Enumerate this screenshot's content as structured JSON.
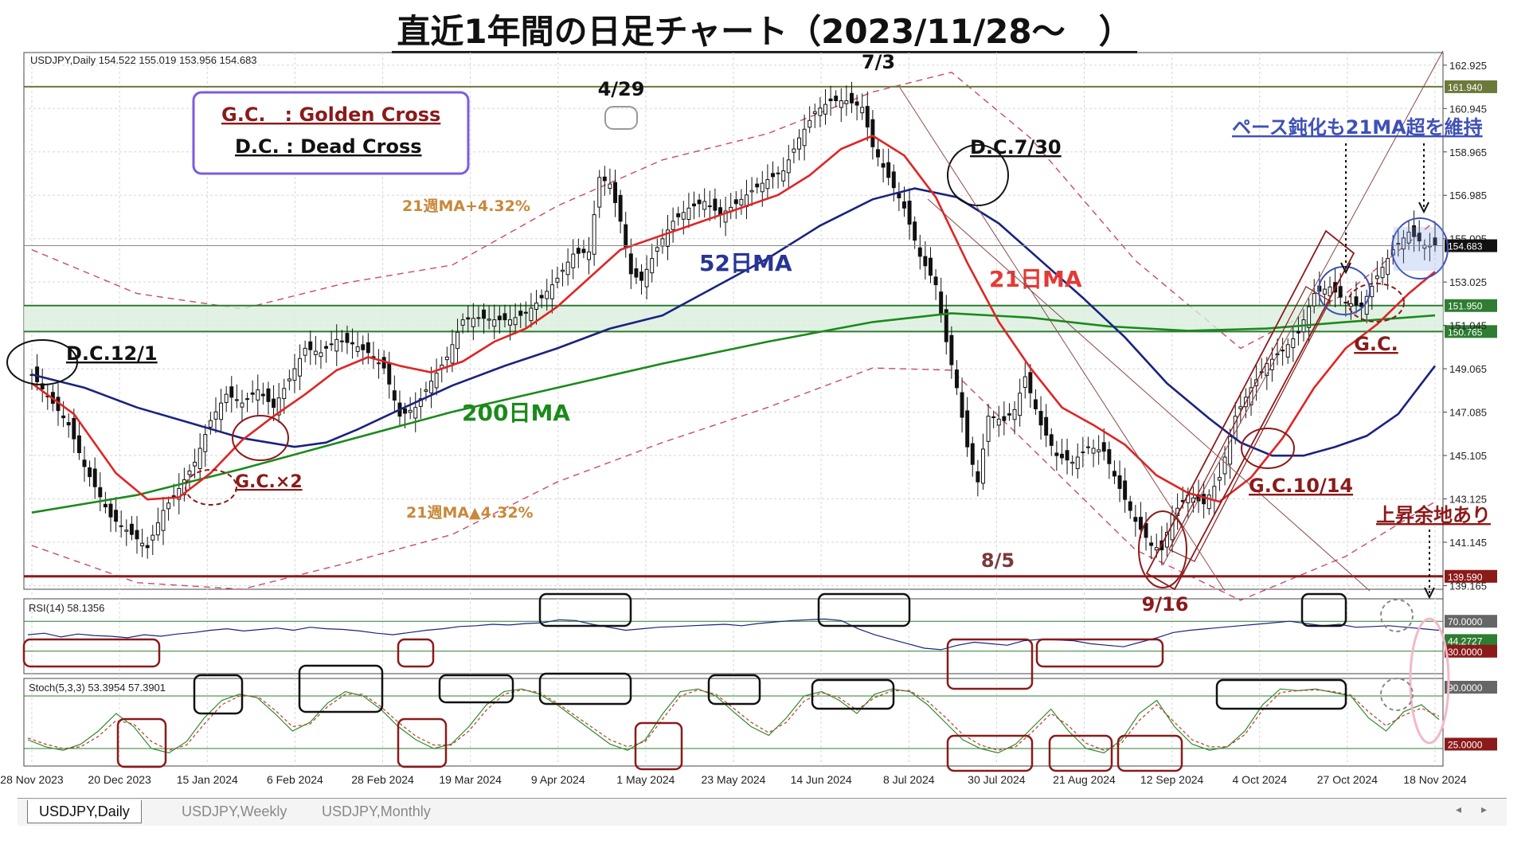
{
  "title": "直近1年間の日足チャート（2023/11/28～　）",
  "chart_data": {
    "type": "candlestick",
    "symbol_header": "USDJPY,Daily  154.522 155.019 153.956 154.683",
    "ohlc_last": {
      "open": 154.522,
      "high": 155.019,
      "low": 153.956,
      "close": 154.683
    },
    "price_ticks": [
      "162.925",
      "160.945",
      "158.965",
      "156.985",
      "155.005",
      "153.025",
      "151.045",
      "149.065",
      "147.085",
      "145.105",
      "143.125",
      "141.145",
      "139.165"
    ],
    "price_ylim": [
      139.0,
      163.5
    ],
    "date_labels": [
      "28 Nov 2023",
      "20 Dec 2023",
      "15 Jan 2024",
      "6 Feb 2024",
      "28 Feb 2024",
      "19 Mar 2024",
      "9 Apr 2024",
      "1 May 2024",
      "23 May 2024",
      "14 Jun 2024",
      "8 Jul 2024",
      "30 Jul 2024",
      "21 Aug 2024",
      "12 Sep 2024",
      "4 Oct 2024",
      "27 Oct 2024",
      "18 Nov 2024"
    ],
    "close_path": [
      {
        "x": 0,
        "y": 148.8
      },
      {
        "x": 7,
        "y": 146.5
      },
      {
        "x": 10,
        "y": 144.6
      },
      {
        "x": 15,
        "y": 142.3
      },
      {
        "x": 19,
        "y": 141.5
      },
      {
        "x": 22,
        "y": 140.9
      },
      {
        "x": 25,
        "y": 142.6
      },
      {
        "x": 28,
        "y": 143.6
      },
      {
        "x": 31,
        "y": 144.8
      },
      {
        "x": 34,
        "y": 146.7
      },
      {
        "x": 37,
        "y": 147.9
      },
      {
        "x": 40,
        "y": 147.5
      },
      {
        "x": 43,
        "y": 148.1
      },
      {
        "x": 46,
        "y": 147.3
      },
      {
        "x": 49,
        "y": 148.6
      },
      {
        "x": 52,
        "y": 150.0
      },
      {
        "x": 55,
        "y": 149.8
      },
      {
        "x": 58,
        "y": 150.4
      },
      {
        "x": 61,
        "y": 150.2
      },
      {
        "x": 64,
        "y": 149.8
      },
      {
        "x": 67,
        "y": 149.1
      },
      {
        "x": 70,
        "y": 146.9
      },
      {
        "x": 73,
        "y": 147.3
      },
      {
        "x": 76,
        "y": 148.5
      },
      {
        "x": 79,
        "y": 149.6
      },
      {
        "x": 82,
        "y": 151.3
      },
      {
        "x": 85,
        "y": 151.4
      },
      {
        "x": 88,
        "y": 151.3
      },
      {
        "x": 91,
        "y": 151.3
      },
      {
        "x": 94,
        "y": 151.6
      },
      {
        "x": 97,
        "y": 152.3
      },
      {
        "x": 100,
        "y": 153.2
      },
      {
        "x": 103,
        "y": 154.3
      },
      {
        "x": 106,
        "y": 154.4
      },
      {
        "x": 108,
        "y": 157.8
      },
      {
        "x": 110,
        "y": 157.5
      },
      {
        "x": 112,
        "y": 155.8
      },
      {
        "x": 114,
        "y": 153.4
      },
      {
        "x": 116,
        "y": 153.1
      },
      {
        "x": 119,
        "y": 154.6
      },
      {
        "x": 122,
        "y": 155.8
      },
      {
        "x": 125,
        "y": 156.4
      },
      {
        "x": 128,
        "y": 156.7
      },
      {
        "x": 131,
        "y": 156.1
      },
      {
        "x": 134,
        "y": 156.6
      },
      {
        "x": 137,
        "y": 157.2
      },
      {
        "x": 140,
        "y": 157.7
      },
      {
        "x": 143,
        "y": 158.1
      },
      {
        "x": 146,
        "y": 159.6
      },
      {
        "x": 149,
        "y": 160.8
      },
      {
        "x": 152,
        "y": 161.3
      },
      {
        "x": 155,
        "y": 161.3
      },
      {
        "x": 158,
        "y": 161.0
      },
      {
        "x": 160,
        "y": 159.2
      },
      {
        "x": 163,
        "y": 157.8
      },
      {
        "x": 166,
        "y": 156.4
      },
      {
        "x": 169,
        "y": 154.2
      },
      {
        "x": 172,
        "y": 152.9
      },
      {
        "x": 174,
        "y": 150.3
      },
      {
        "x": 176,
        "y": 148.2
      },
      {
        "x": 178,
        "y": 145.5
      },
      {
        "x": 180,
        "y": 143.9
      },
      {
        "x": 182,
        "y": 146.9
      },
      {
        "x": 185,
        "y": 146.7
      },
      {
        "x": 187,
        "y": 147.2
      },
      {
        "x": 189,
        "y": 148.7
      },
      {
        "x": 192,
        "y": 146.5
      },
      {
        "x": 195,
        "y": 145.1
      },
      {
        "x": 198,
        "y": 144.8
      },
      {
        "x": 201,
        "y": 145.5
      },
      {
        "x": 204,
        "y": 145.3
      },
      {
        "x": 207,
        "y": 143.6
      },
      {
        "x": 210,
        "y": 142.1
      },
      {
        "x": 213,
        "y": 141.0
      },
      {
        "x": 215,
        "y": 140.8
      },
      {
        "x": 217,
        "y": 142.4
      },
      {
        "x": 220,
        "y": 143.3
      },
      {
        "x": 223,
        "y": 142.9
      },
      {
        "x": 226,
        "y": 144.1
      },
      {
        "x": 229,
        "y": 146.9
      },
      {
        "x": 232,
        "y": 148.2
      },
      {
        "x": 235,
        "y": 149.3
      },
      {
        "x": 238,
        "y": 149.9
      },
      {
        "x": 241,
        "y": 150.7
      },
      {
        "x": 244,
        "y": 152.5
      },
      {
        "x": 247,
        "y": 152.8
      },
      {
        "x": 250,
        "y": 152.1
      },
      {
        "x": 253,
        "y": 151.9
      },
      {
        "x": 256,
        "y": 153.3
      },
      {
        "x": 259,
        "y": 154.5
      },
      {
        "x": 262,
        "y": 155.3
      },
      {
        "x": 265,
        "y": 154.7
      },
      {
        "x": 267,
        "y": 154.683
      }
    ],
    "ma21": [
      {
        "x": 0,
        "y": 148.4
      },
      {
        "x": 8,
        "y": 147.0
      },
      {
        "x": 16,
        "y": 144.3
      },
      {
        "x": 22,
        "y": 143.1
      },
      {
        "x": 28,
        "y": 143.2
      },
      {
        "x": 34,
        "y": 144.3
      },
      {
        "x": 40,
        "y": 145.8
      },
      {
        "x": 46,
        "y": 146.9
      },
      {
        "x": 52,
        "y": 147.9
      },
      {
        "x": 58,
        "y": 149.0
      },
      {
        "x": 64,
        "y": 149.6
      },
      {
        "x": 70,
        "y": 149.2
      },
      {
        "x": 76,
        "y": 148.9
      },
      {
        "x": 82,
        "y": 149.4
      },
      {
        "x": 88,
        "y": 150.3
      },
      {
        "x": 94,
        "y": 150.9
      },
      {
        "x": 100,
        "y": 151.9
      },
      {
        "x": 106,
        "y": 153.2
      },
      {
        "x": 112,
        "y": 154.5
      },
      {
        "x": 118,
        "y": 155.0
      },
      {
        "x": 124,
        "y": 155.5
      },
      {
        "x": 130,
        "y": 156.0
      },
      {
        "x": 136,
        "y": 156.5
      },
      {
        "x": 142,
        "y": 157.0
      },
      {
        "x": 148,
        "y": 157.9
      },
      {
        "x": 154,
        "y": 159.1
      },
      {
        "x": 160,
        "y": 159.7
      },
      {
        "x": 166,
        "y": 158.8
      },
      {
        "x": 172,
        "y": 156.9
      },
      {
        "x": 178,
        "y": 153.9
      },
      {
        "x": 184,
        "y": 151.2
      },
      {
        "x": 190,
        "y": 149.1
      },
      {
        "x": 196,
        "y": 147.3
      },
      {
        "x": 202,
        "y": 146.5
      },
      {
        "x": 208,
        "y": 145.6
      },
      {
        "x": 214,
        "y": 144.2
      },
      {
        "x": 220,
        "y": 143.4
      },
      {
        "x": 226,
        "y": 143.0
      },
      {
        "x": 232,
        "y": 144.1
      },
      {
        "x": 238,
        "y": 145.9
      },
      {
        "x": 244,
        "y": 148.2
      },
      {
        "x": 250,
        "y": 150.0
      },
      {
        "x": 256,
        "y": 151.1
      },
      {
        "x": 262,
        "y": 152.5
      },
      {
        "x": 267,
        "y": 153.5
      }
    ],
    "ma52": [
      {
        "x": 0,
        "y": 148.8
      },
      {
        "x": 10,
        "y": 148.2
      },
      {
        "x": 20,
        "y": 147.3
      },
      {
        "x": 30,
        "y": 146.6
      },
      {
        "x": 40,
        "y": 145.9
      },
      {
        "x": 50,
        "y": 145.5
      },
      {
        "x": 56,
        "y": 145.7
      },
      {
        "x": 62,
        "y": 146.3
      },
      {
        "x": 70,
        "y": 147.2
      },
      {
        "x": 80,
        "y": 148.3
      },
      {
        "x": 90,
        "y": 149.2
      },
      {
        "x": 100,
        "y": 150.0
      },
      {
        "x": 110,
        "y": 150.9
      },
      {
        "x": 120,
        "y": 151.5
      },
      {
        "x": 130,
        "y": 152.8
      },
      {
        "x": 140,
        "y": 154.1
      },
      {
        "x": 150,
        "y": 155.6
      },
      {
        "x": 160,
        "y": 156.8
      },
      {
        "x": 168,
        "y": 157.3
      },
      {
        "x": 176,
        "y": 156.9
      },
      {
        "x": 184,
        "y": 155.7
      },
      {
        "x": 192,
        "y": 154.0
      },
      {
        "x": 200,
        "y": 152.3
      },
      {
        "x": 208,
        "y": 150.5
      },
      {
        "x": 216,
        "y": 148.4
      },
      {
        "x": 224,
        "y": 146.8
      },
      {
        "x": 230,
        "y": 145.7
      },
      {
        "x": 236,
        "y": 145.1
      },
      {
        "x": 242,
        "y": 145.1
      },
      {
        "x": 248,
        "y": 145.5
      },
      {
        "x": 254,
        "y": 146.0
      },
      {
        "x": 260,
        "y": 147.0
      },
      {
        "x": 267,
        "y": 149.2
      }
    ],
    "ma200": [
      {
        "x": 0,
        "y": 142.5
      },
      {
        "x": 20,
        "y": 143.3
      },
      {
        "x": 40,
        "y": 144.5
      },
      {
        "x": 60,
        "y": 145.8
      },
      {
        "x": 80,
        "y": 147.1
      },
      {
        "x": 100,
        "y": 148.2
      },
      {
        "x": 120,
        "y": 149.3
      },
      {
        "x": 140,
        "y": 150.3
      },
      {
        "x": 160,
        "y": 151.2
      },
      {
        "x": 175,
        "y": 151.6
      },
      {
        "x": 190,
        "y": 151.4
      },
      {
        "x": 205,
        "y": 151.0
      },
      {
        "x": 220,
        "y": 150.8
      },
      {
        "x": 235,
        "y": 150.9
      },
      {
        "x": 250,
        "y": 151.2
      },
      {
        "x": 267,
        "y": 151.5
      }
    ],
    "band_upper": [
      {
        "x": 0,
        "y": 154.5
      },
      {
        "x": 20,
        "y": 152.5
      },
      {
        "x": 40,
        "y": 151.8
      },
      {
        "x": 60,
        "y": 153.0
      },
      {
        "x": 80,
        "y": 153.8
      },
      {
        "x": 100,
        "y": 156.5
      },
      {
        "x": 120,
        "y": 158.6
      },
      {
        "x": 140,
        "y": 159.8
      },
      {
        "x": 160,
        "y": 161.7
      },
      {
        "x": 175,
        "y": 162.6
      },
      {
        "x": 190,
        "y": 159.6
      },
      {
        "x": 210,
        "y": 154.0
      },
      {
        "x": 230,
        "y": 150.0
      },
      {
        "x": 250,
        "y": 152.5
      },
      {
        "x": 267,
        "y": 155.8
      }
    ],
    "band_lower": [
      {
        "x": 0,
        "y": 141.0
      },
      {
        "x": 20,
        "y": 139.3
      },
      {
        "x": 40,
        "y": 139.0
      },
      {
        "x": 60,
        "y": 140.2
      },
      {
        "x": 80,
        "y": 141.5
      },
      {
        "x": 100,
        "y": 143.9
      },
      {
        "x": 120,
        "y": 145.7
      },
      {
        "x": 140,
        "y": 147.3
      },
      {
        "x": 160,
        "y": 149.1
      },
      {
        "x": 175,
        "y": 149.0
      },
      {
        "x": 190,
        "y": 145.5
      },
      {
        "x": 210,
        "y": 140.8
      },
      {
        "x": 230,
        "y": 138.5
      },
      {
        "x": 250,
        "y": 140.5
      },
      {
        "x": 267,
        "y": 143.0
      }
    ],
    "horizontal_levels": [
      {
        "label": "161.940",
        "value": 161.94,
        "color": "#6b7a3a"
      },
      {
        "label": "151.950",
        "value": 151.95,
        "color": "#2e7d32"
      },
      {
        "label": "150.765",
        "value": 150.765,
        "color": "#2e7d32"
      },
      {
        "label": "139.590",
        "value": 139.59,
        "color": "#8b1a1a"
      }
    ],
    "current_price_label": "154.683",
    "ma_labels": {
      "ma21": "21日MA",
      "ma52": "52日MA",
      "ma200": "200日MA",
      "band_upper": "21週MA+4.32%",
      "band_lower": "21週MA▲4.32%"
    },
    "legend": {
      "gc": "G.C.　: Golden Cross",
      "dc": "D.C. : Dead Cross"
    },
    "annotations": {
      "dc_12_1": "D.C.12/1",
      "gc_x2": "G.C.×2",
      "apr29": "4/29",
      "jul3": "7/3",
      "dc_7_30": "D.C.7/30",
      "aug5": "8/5",
      "sep16": "9/16",
      "gc_10_14": "G.C.10/14",
      "gc": "G.C.",
      "pace": "ペース鈍化も21MA超を維持",
      "upside": "上昇余地あり"
    },
    "rsi": {
      "header": "RSI(14) 58.1356",
      "ticks": [
        "70.0000",
        "44.2727",
        "30.0000"
      ],
      "levels": [
        70,
        30
      ],
      "series": [
        52,
        54,
        49,
        53,
        51,
        50,
        48,
        52,
        50,
        53,
        55,
        58,
        60,
        57,
        59,
        61,
        58,
        62,
        60,
        59,
        57,
        54,
        52,
        55,
        58,
        60,
        63,
        64,
        66,
        65,
        67,
        68,
        72,
        71,
        66,
        62,
        58,
        60,
        62,
        63,
        64,
        65,
        66,
        64,
        67,
        69,
        71,
        72,
        73,
        71,
        60,
        52,
        46,
        40,
        34,
        32,
        38,
        42,
        40,
        38,
        44,
        46,
        45,
        44,
        40,
        38,
        36,
        42,
        48,
        55,
        58,
        60,
        62,
        64,
        66,
        68,
        70,
        67,
        64,
        66,
        62,
        63,
        64,
        62,
        60,
        58
      ]
    },
    "stoch": {
      "header": "Stoch(5,3,3) 53.3954 57.3901",
      "ticks": [
        "90.0000",
        "25.0000"
      ],
      "levels": [
        80,
        20
      ],
      "k": [
        30,
        22,
        18,
        25,
        40,
        60,
        45,
        20,
        15,
        28,
        55,
        75,
        82,
        78,
        60,
        40,
        50,
        72,
        85,
        80,
        65,
        45,
        30,
        20,
        25,
        45,
        70,
        85,
        88,
        82,
        70,
        55,
        40,
        25,
        18,
        30,
        60,
        85,
        88,
        80,
        62,
        45,
        35,
        55,
        80,
        85,
        75,
        60,
        82,
        88,
        85,
        70,
        50,
        30,
        20,
        15,
        25,
        45,
        65,
        40,
        20,
        15,
        30,
        60,
        75,
        45,
        25,
        18,
        22,
        40,
        70,
        88,
        86,
        88,
        84,
        80,
        55,
        40,
        62,
        70,
        53
      ],
      "d": [
        32,
        25,
        20,
        22,
        34,
        52,
        48,
        28,
        18,
        24,
        48,
        70,
        80,
        80,
        64,
        45,
        48,
        68,
        82,
        82,
        68,
        50,
        34,
        24,
        24,
        40,
        64,
        82,
        87,
        84,
        72,
        58,
        44,
        30,
        22,
        28,
        54,
        80,
        87,
        82,
        66,
        50,
        38,
        50,
        74,
        84,
        78,
        64,
        78,
        86,
        86,
        74,
        56,
        36,
        24,
        18,
        22,
        40,
        60,
        46,
        26,
        18,
        26,
        52,
        70,
        50,
        30,
        22,
        22,
        36,
        64,
        84,
        86,
        87,
        85,
        81,
        62,
        46,
        58,
        66,
        57
      ]
    },
    "rsi_boxes": [
      {
        "c": "#8b1a1a"
      },
      {
        "c": "#8b1a1a"
      },
      {
        "c": "#111"
      },
      {
        "c": "#111"
      },
      {
        "c": "#8b1a1a"
      },
      {
        "c": "#8b1a1a"
      },
      {
        "c": "#111"
      }
    ]
  },
  "tabs": [
    "USDJPY,Daily",
    "USDJPY,Weekly",
    "USDJPY,Monthly"
  ],
  "colors": {
    "ma21": "#e02424",
    "ma52": "#1a237e",
    "ma200": "#1b8a1b",
    "band": "#c94a6b",
    "candle": "#111111",
    "annot_red": "#8b1a1a",
    "annot_blue": "#3f51b5",
    "band_text": "#c8883a",
    "grid": "#d6d6d6"
  }
}
